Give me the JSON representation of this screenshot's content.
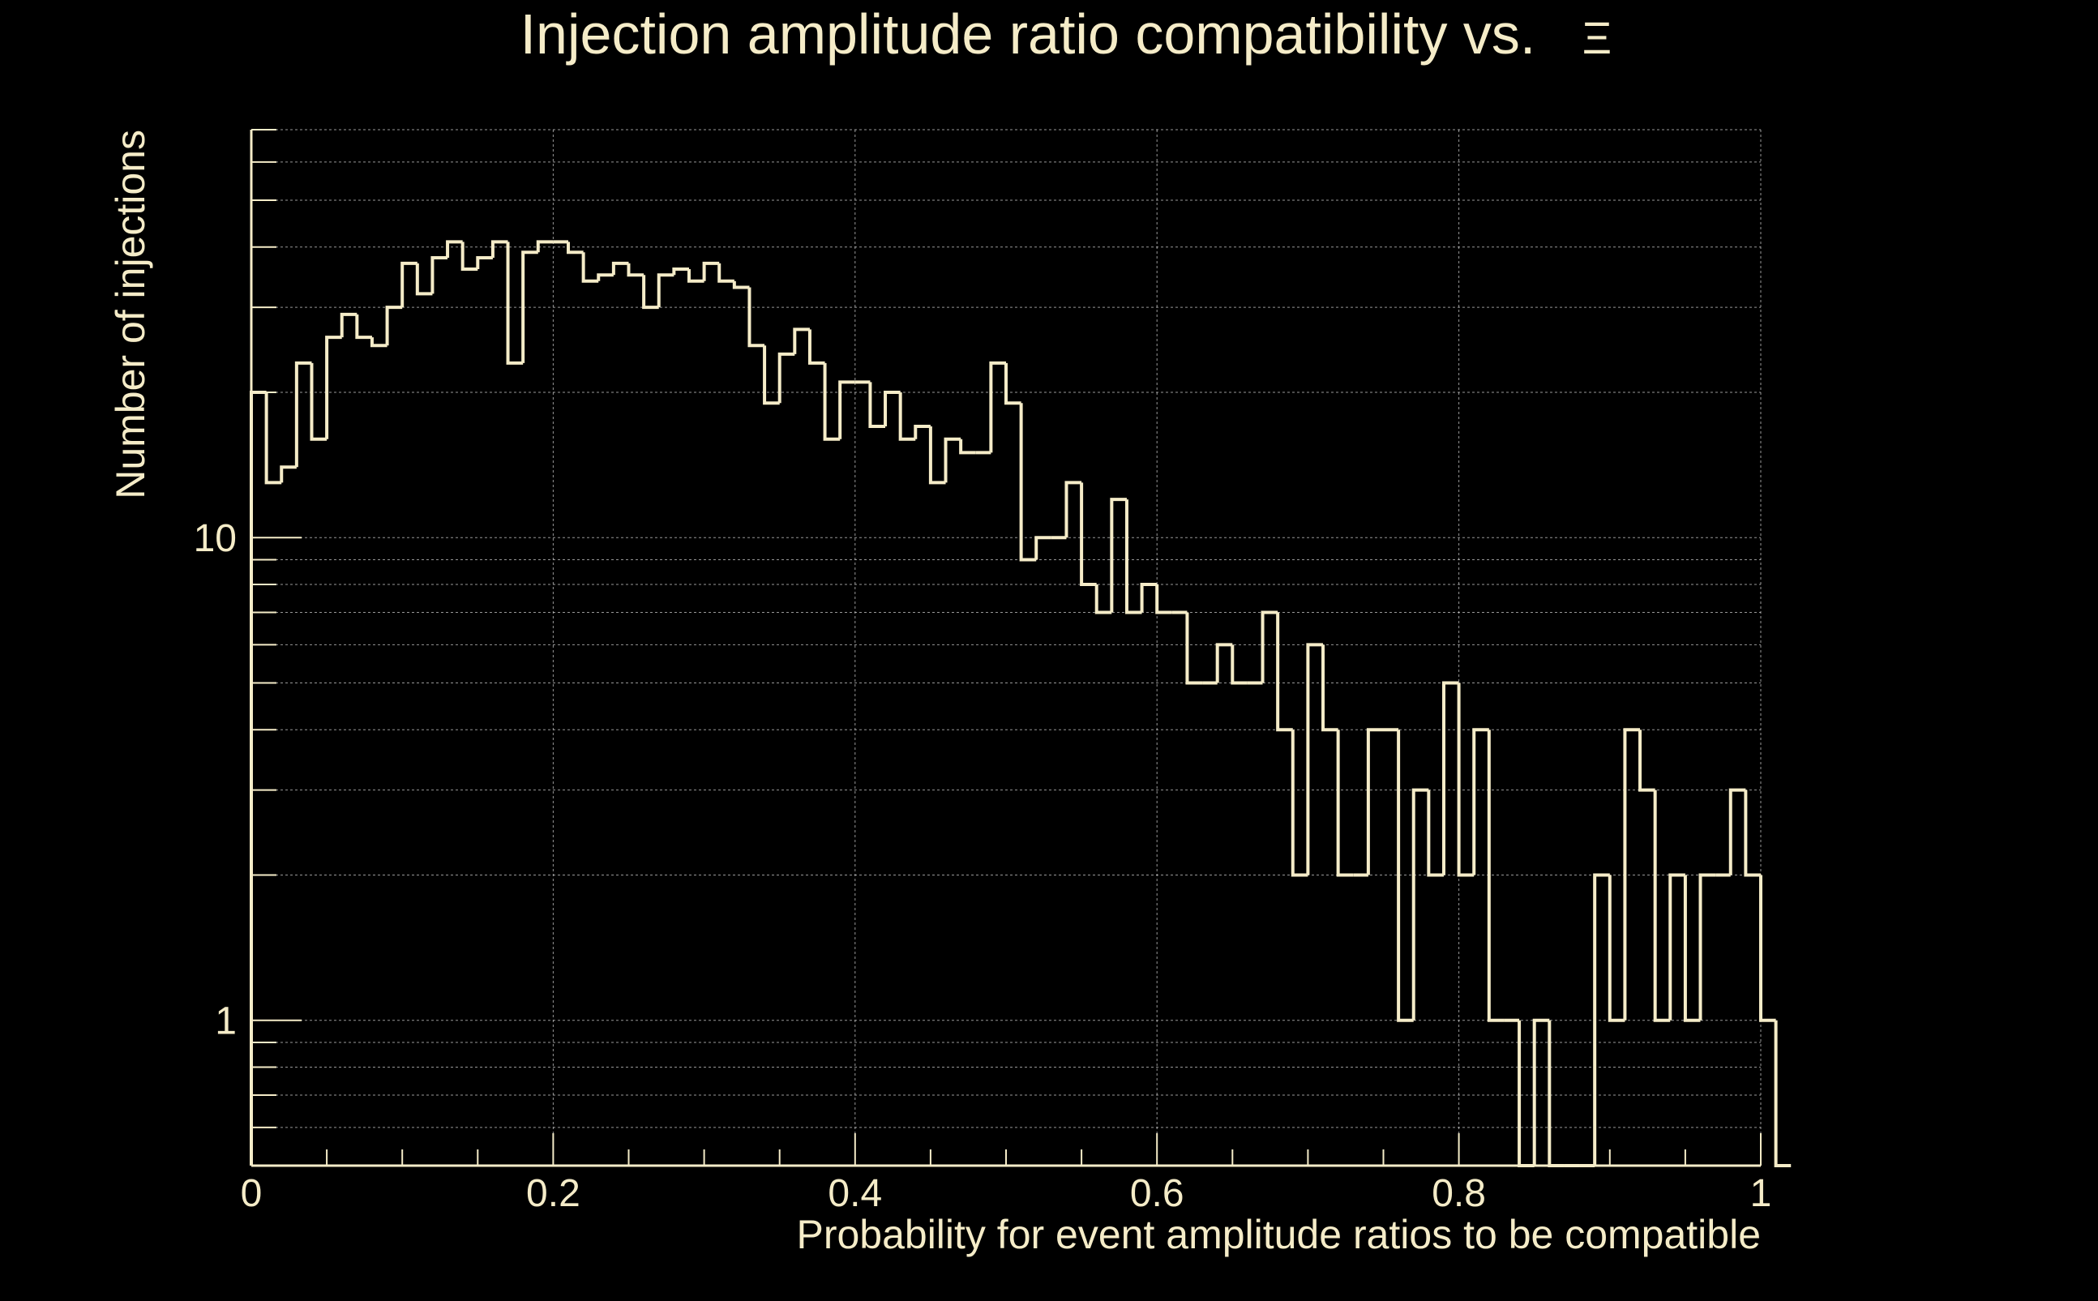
{
  "chart_data": {
    "type": "histogram",
    "title": "Injection amplitude ratio compatibility vs.",
    "title_symbol": "Ξ",
    "xlabel": "Probability for event amplitude ratios to be compatible",
    "ylabel": "Number of injections",
    "xlim": [
      0,
      1
    ],
    "ylim": [
      0.5,
      70
    ],
    "yscale": "log",
    "grid": true,
    "x_ticks": [
      0,
      0.2,
      0.4,
      0.6,
      0.8,
      1
    ],
    "x_tick_labels": [
      "0",
      "0.2",
      "0.4",
      "0.6",
      "0.8",
      "1"
    ],
    "y_ticks": [
      1,
      10
    ],
    "y_tick_labels": [
      "1",
      "10"
    ],
    "bin_width": 0.01,
    "values": [
      20,
      13,
      14,
      23,
      16,
      26,
      29,
      26,
      25,
      30,
      37,
      32,
      38,
      41,
      36,
      38,
      41,
      23,
      39,
      41,
      41,
      39,
      34,
      35,
      37,
      35,
      30,
      35,
      36,
      34,
      37,
      34,
      33,
      25,
      19,
      24,
      27,
      23,
      16,
      21,
      21,
      17,
      20,
      16,
      17,
      13,
      16,
      15,
      15,
      23,
      19,
      9,
      10,
      10,
      13,
      8,
      7,
      12,
      7,
      8,
      7,
      7,
      5,
      5,
      6,
      5,
      5,
      7,
      4,
      2,
      6,
      4,
      2,
      2,
      4,
      4,
      1,
      3,
      2,
      5,
      2,
      4,
      1,
      1,
      0,
      1,
      0,
      0,
      0,
      2,
      1,
      4,
      3,
      1,
      2,
      1,
      2,
      2,
      3,
      2,
      1,
      0
    ],
    "colors": {
      "background": "#000000",
      "foreground": "#f5ecc8",
      "grid": "#d8d8d8"
    }
  }
}
